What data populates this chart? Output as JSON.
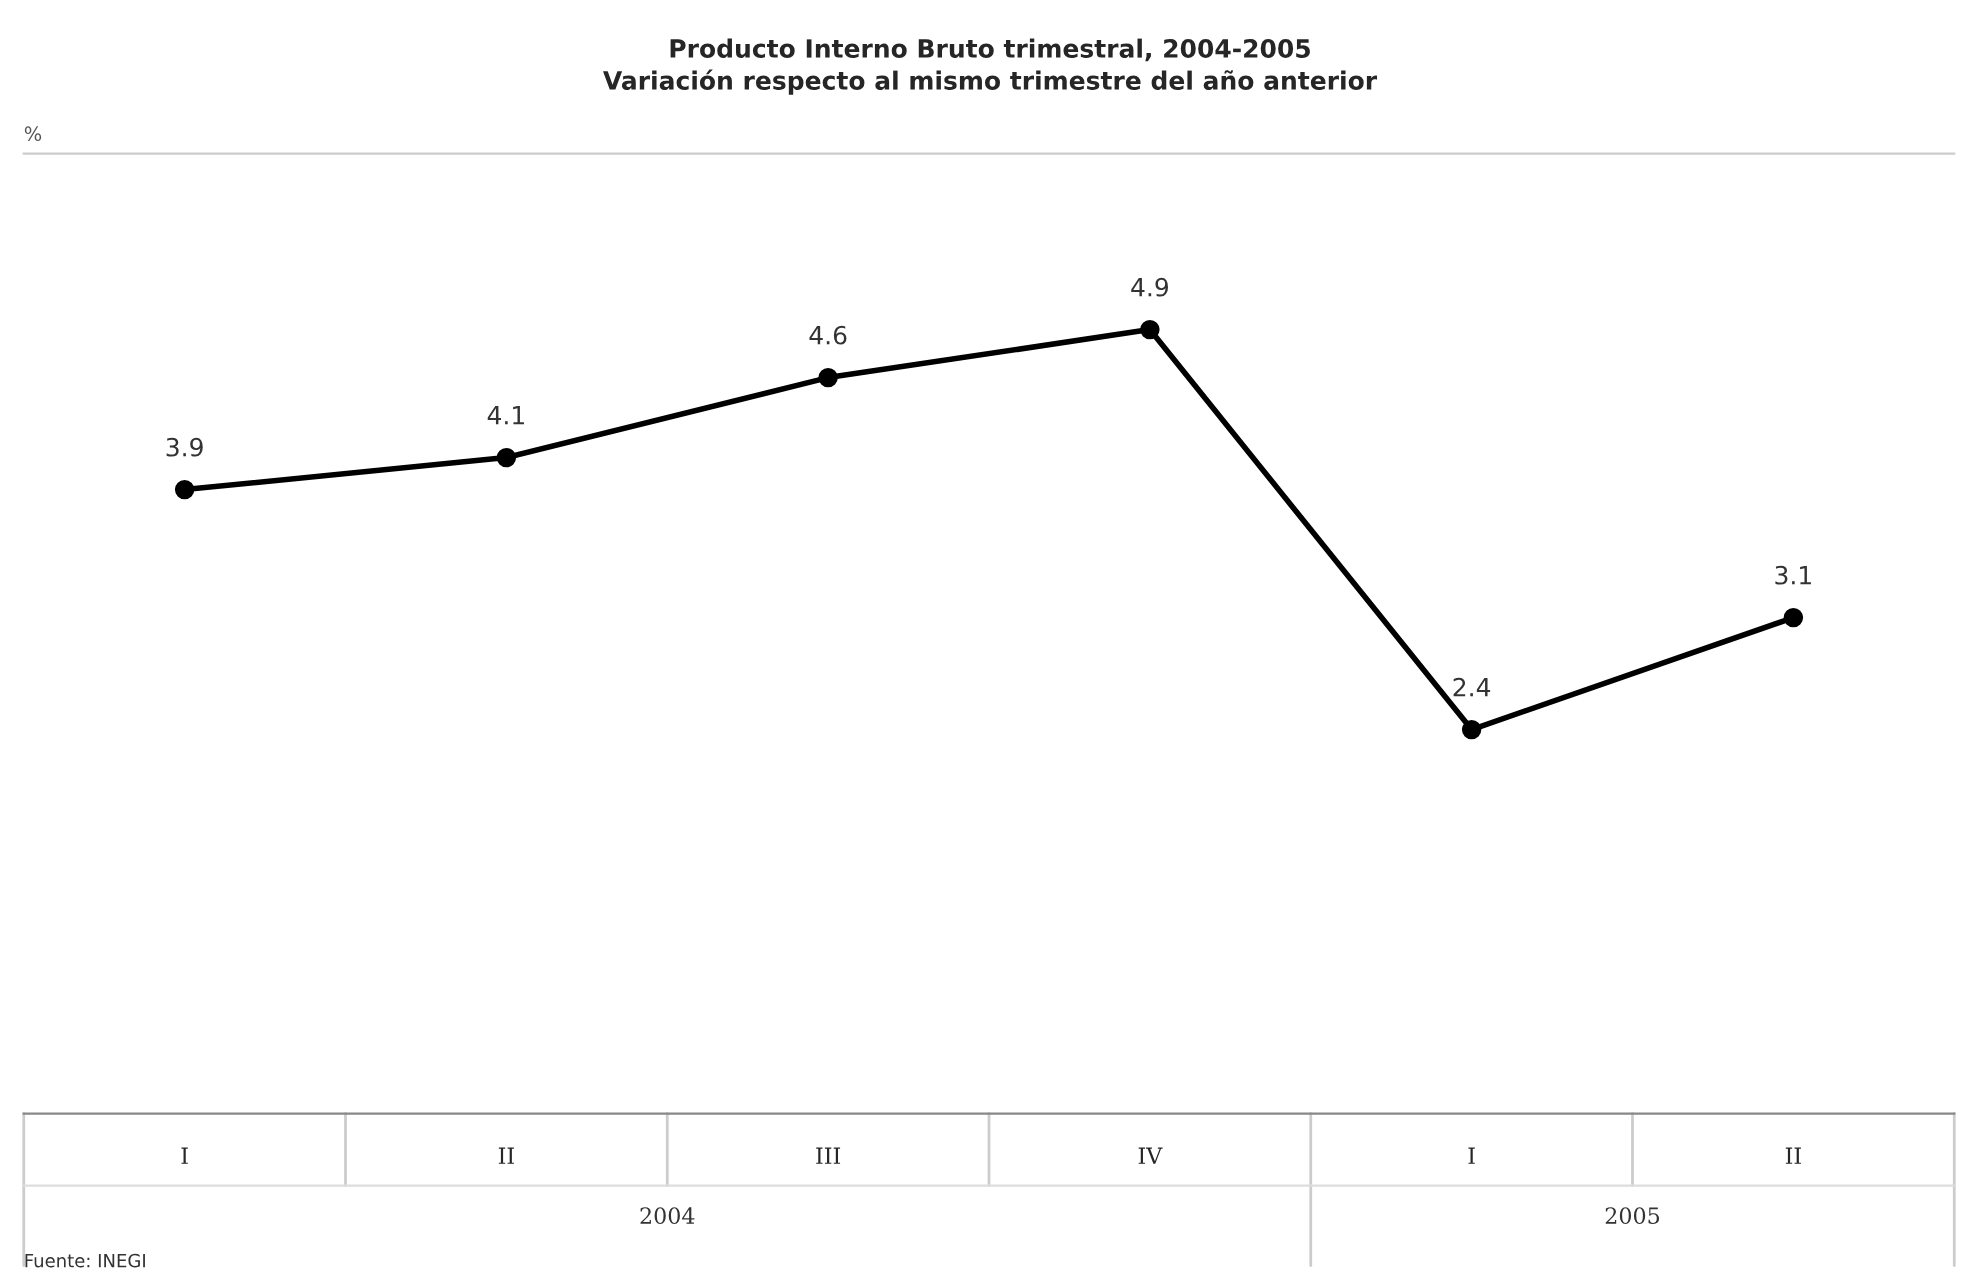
{
  "chart_data": {
    "type": "line",
    "title": "Producto Interno Bruto trimestral, 2004-2005",
    "subtitle": "Variación respecto al mismo trimestre del año anterior",
    "ylabel": "%",
    "categories": [
      "I",
      "II",
      "III",
      "IV",
      "I",
      "II"
    ],
    "series": [
      {
        "color": "#000000",
        "values": [
          3.9,
          4.1,
          4.6,
          4.9,
          2.4,
          3.1
        ]
      }
    ],
    "ylim": [
      0,
      6
    ],
    "tick_labels": "x",
    "data_labels": true,
    "marker": "circle",
    "line_style": "solid",
    "grid": false,
    "legend": false,
    "annotations": [
      "2004",
      "2005",
      "Fuente: INEGI"
    ]
  }
}
